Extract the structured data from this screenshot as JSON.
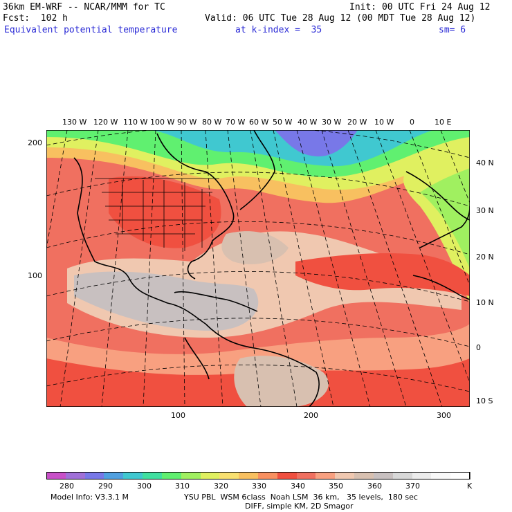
{
  "header": {
    "model_title": "36km EM-WRF -- NCAR/MMM for TC",
    "init": "Init: 00 UTC Fri 24 Aug 12",
    "fcst": "Fcst:  102 h",
    "valid": "Valid: 06 UTC Tue 28 Aug 12 (00 MDT Tue 28 Aug 12)",
    "field": "Equivalent potential temperature",
    "level": "at k-index =  35",
    "smooth": "sm= 6"
  },
  "map": {
    "top_lon_labels": [
      "130 W",
      "120 W",
      "110 W",
      "100 W",
      "90 W",
      "80 W",
      "70 W",
      "60 W",
      "50 W",
      "40 W",
      "30 W",
      "20 W",
      "10 W",
      "0",
      "10 E"
    ],
    "right_lat_labels": [
      "40 N",
      "30 N",
      "20 N",
      "10 N",
      "0",
      "10 S"
    ],
    "left_y_labels": [
      "200",
      "100"
    ],
    "bottom_x_labels": [
      "100",
      "200",
      "300"
    ]
  },
  "legend": {
    "labels": [
      "280",
      "290",
      "300",
      "310",
      "320",
      "330",
      "340",
      "350",
      "360",
      "370"
    ],
    "unit": "K",
    "colors": [
      "#c850c8",
      "#a070d8",
      "#7878e8",
      "#50a0e0",
      "#40c8d0",
      "#40e0a0",
      "#60f070",
      "#a0f060",
      "#e0f060",
      "#f8e070",
      "#f8c060",
      "#f89060",
      "#f05040",
      "#f07060",
      "#f8a080",
      "#f0c8b0",
      "#d8c0b0",
      "#c8c0c0",
      "#d8d8d8",
      "#ececec",
      "#f8f8f8",
      "#ffffff"
    ]
  },
  "footer": {
    "line1_left": "Model Info: V3.3.1 M",
    "line1_right": "YSU PBL  WSM 6class  Noah LSM  36 km,   35 levels,  180 sec",
    "line2": "DIFF, simple KM, 2D Smagor"
  }
}
